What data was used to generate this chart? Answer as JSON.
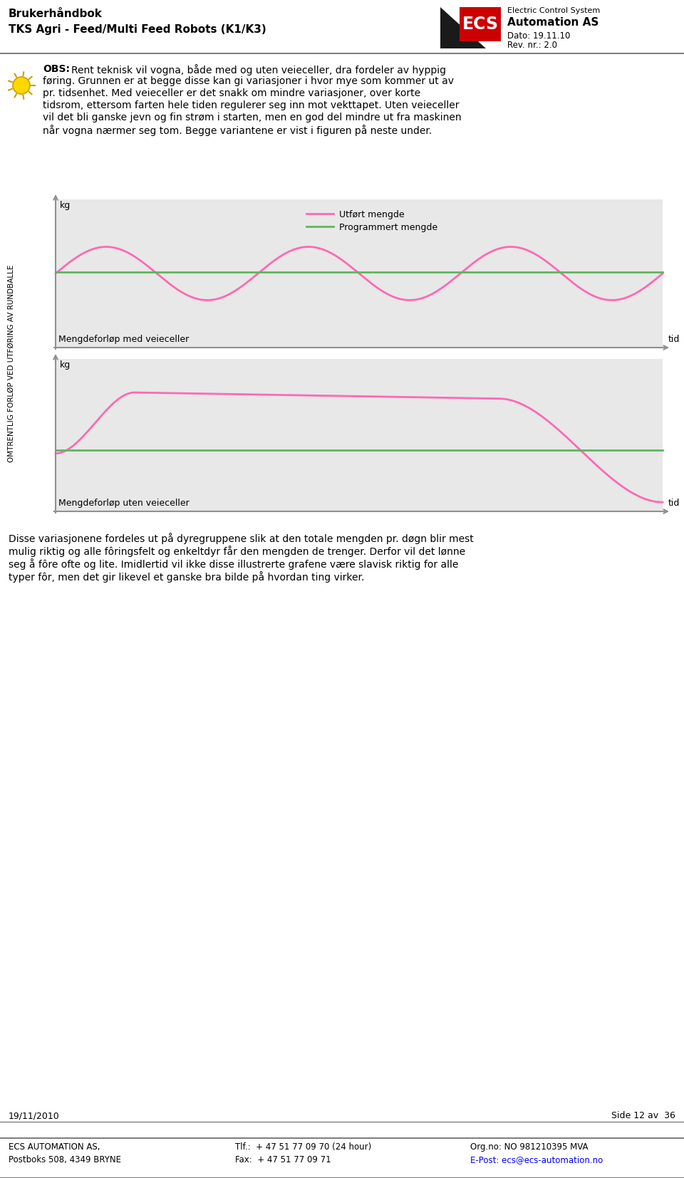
{
  "page_title_line1": "Brukerhåndbok",
  "page_title_line2": "TKS Agri - Feed/Multi Feed Robots (K1/K3)",
  "company_subtitle": "Electric Control System",
  "company_name2": "Automation AS",
  "dato": "Dato: 19.11.10",
  "rev": "Rev. nr.: 2.0",
  "obs_lines": [
    "OBS: Rent teknisk vil vogna, både med og uten veieceller, dra fordeler av hyppig",
    "føring. Grunnen er at begge disse kan gi variasjoner i hvor mye som kommer ut av",
    "pr. tidsenhet. Med veieceller er det snakk om mindre variasjoner, over korte",
    "tidsrom, ettersom farten hele tiden regulerer seg inn mot vekttapet. Uten veieceller",
    "vil det bli ganske jevn og fin strøm i starten, men en god del mindre ut fra maskinen",
    "når vogna nærmer seg tom. Begge variantene er vist i figuren på neste under."
  ],
  "ylabel_rotated": "OMTRENTLIG FORLØP VED UTFØRING AV RUNDBALLE",
  "plot1_kg_label": "kg",
  "plot1_xlabel": "Mengdeforløp med veieceller",
  "plot1_xend": "tid",
  "plot1_legend1": "Utført mengde",
  "plot1_legend2": "Programmert mengde",
  "plot2_kg_label": "kg",
  "plot2_xlabel": "Mengdeforløp uten veieceller",
  "plot2_xend": "tid",
  "pink_color": "#FF69B4",
  "green_color": "#5CB85C",
  "plot_bg_color": "#E8E8E8",
  "bottom_lines": [
    "Disse variasjonene fordeles ut på dyregruppene slik at den totale mengden pr. døgn blir mest",
    "mulig riktig og alle fôringsfelt og enkeltdyr får den mengden de trenger. Derfor vil det lønne",
    "seg å fôre ofte og lite. Imidlertid vil ikke disse illustrerte grafene være slavisk riktig for alle",
    "typer fôr, men det gir likevel et ganske bra bilde på hvordan ting virker."
  ],
  "footer_left": "19/11/2010",
  "footer_right": "Side 12 av  36",
  "footer2_col1a": "ECS AUTOMATION AS,",
  "footer2_col1b": "Postboks 508, 4349 BRYNE",
  "footer2_col2a": "Tlf.:  + 47 51 77 09 70 (24 hour)",
  "footer2_col2b": "Fax:  + 47 51 77 09 71",
  "footer2_col3a": "Org.no: NO 981210395 MVA",
  "footer2_col3b": "E-Post: ecs@ecs-automation.no",
  "border_color": "#808080",
  "bg_color": "#FFFFFF",
  "text_color": "#000000",
  "axis_color": "#909090"
}
